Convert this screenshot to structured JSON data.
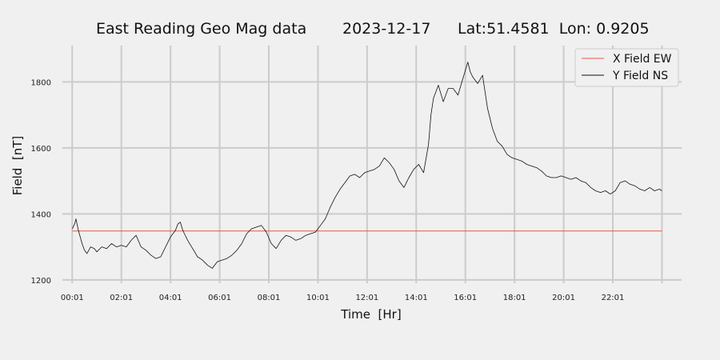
{
  "chart_data": {
    "type": "line",
    "title": {
      "name": "East Reading Geo Mag data",
      "date": "2023-12-17",
      "location": "Lat:51.4581  Lon: 0.9205"
    },
    "xlabel": "Time  [Hr]",
    "ylabel": "Field  [nT]",
    "xlim": [
      -0.4,
      24.8
    ],
    "ylim": [
      1190,
      1910
    ],
    "x_ticks": [
      {
        "value": 0,
        "label": "00:01"
      },
      {
        "value": 2,
        "label": "02:01"
      },
      {
        "value": 4,
        "label": "04:01"
      },
      {
        "value": 6,
        "label": "06:01"
      },
      {
        "value": 8,
        "label": "08:01"
      },
      {
        "value": 10,
        "label": "10:01"
      },
      {
        "value": 12,
        "label": "12:01"
      },
      {
        "value": 14,
        "label": "14:01"
      },
      {
        "value": 16,
        "label": "16:01"
      },
      {
        "value": 18,
        "label": "18:01"
      },
      {
        "value": 20,
        "label": "20:01"
      },
      {
        "value": 22,
        "label": "22:01"
      }
    ],
    "x_grid_extra": [
      24
    ],
    "y_ticks": [
      1200,
      1400,
      1600,
      1800
    ],
    "grid": true,
    "legend_position": "top-right",
    "series": [
      {
        "name": "X Field EW",
        "color": "#e8564a",
        "x": [
          0,
          24
        ],
        "y": [
          1348,
          1348
        ]
      },
      {
        "name": "Y Field NS",
        "color": "#111111",
        "x": [
          0.0,
          0.1,
          0.15,
          0.25,
          0.4,
          0.5,
          0.6,
          0.75,
          0.9,
          1.0,
          1.2,
          1.4,
          1.6,
          1.8,
          2.0,
          2.2,
          2.4,
          2.6,
          2.8,
          3.0,
          3.2,
          3.4,
          3.6,
          3.8,
          4.0,
          4.2,
          4.3,
          4.4,
          4.5,
          4.7,
          4.9,
          5.1,
          5.3,
          5.5,
          5.7,
          5.9,
          6.1,
          6.3,
          6.5,
          6.7,
          6.9,
          7.1,
          7.3,
          7.5,
          7.7,
          7.9,
          8.1,
          8.3,
          8.5,
          8.7,
          8.9,
          9.1,
          9.3,
          9.5,
          9.7,
          9.9,
          10.1,
          10.3,
          10.5,
          10.7,
          10.9,
          11.1,
          11.3,
          11.5,
          11.7,
          11.9,
          12.1,
          12.3,
          12.5,
          12.7,
          12.9,
          13.1,
          13.3,
          13.5,
          13.7,
          13.9,
          14.1,
          14.3,
          14.5,
          14.6,
          14.7,
          14.9,
          15.1,
          15.3,
          15.5,
          15.7,
          15.9,
          16.1,
          16.2,
          16.3,
          16.5,
          16.7,
          16.9,
          17.1,
          17.3,
          17.5,
          17.7,
          17.9,
          18.1,
          18.3,
          18.5,
          18.7,
          18.9,
          19.1,
          19.3,
          19.5,
          19.7,
          19.9,
          20.1,
          20.3,
          20.5,
          20.7,
          20.9,
          21.1,
          21.3,
          21.5,
          21.7,
          21.9,
          22.1,
          22.3,
          22.5,
          22.7,
          22.9,
          23.1,
          23.3,
          23.5,
          23.7,
          23.9,
          24.0
        ],
        "y": [
          1355,
          1370,
          1385,
          1350,
          1310,
          1290,
          1280,
          1300,
          1295,
          1285,
          1300,
          1295,
          1310,
          1300,
          1305,
          1300,
          1320,
          1335,
          1300,
          1290,
          1275,
          1265,
          1270,
          1300,
          1330,
          1350,
          1370,
          1375,
          1350,
          1320,
          1295,
          1270,
          1260,
          1245,
          1235,
          1255,
          1260,
          1265,
          1275,
          1290,
          1310,
          1340,
          1355,
          1360,
          1365,
          1345,
          1310,
          1295,
          1320,
          1335,
          1330,
          1320,
          1325,
          1335,
          1340,
          1345,
          1365,
          1385,
          1420,
          1450,
          1475,
          1495,
          1515,
          1520,
          1510,
          1525,
          1530,
          1535,
          1545,
          1570,
          1555,
          1535,
          1500,
          1480,
          1510,
          1535,
          1550,
          1525,
          1610,
          1700,
          1750,
          1790,
          1740,
          1780,
          1780,
          1760,
          1810,
          1860,
          1830,
          1815,
          1795,
          1820,
          1720,
          1660,
          1620,
          1605,
          1580,
          1570,
          1565,
          1560,
          1550,
          1545,
          1540,
          1530,
          1515,
          1510,
          1510,
          1515,
          1510,
          1505,
          1510,
          1500,
          1495,
          1480,
          1470,
          1465,
          1470,
          1460,
          1470,
          1495,
          1500,
          1490,
          1485,
          1475,
          1470,
          1480,
          1470,
          1475,
          1470
        ]
      }
    ]
  }
}
